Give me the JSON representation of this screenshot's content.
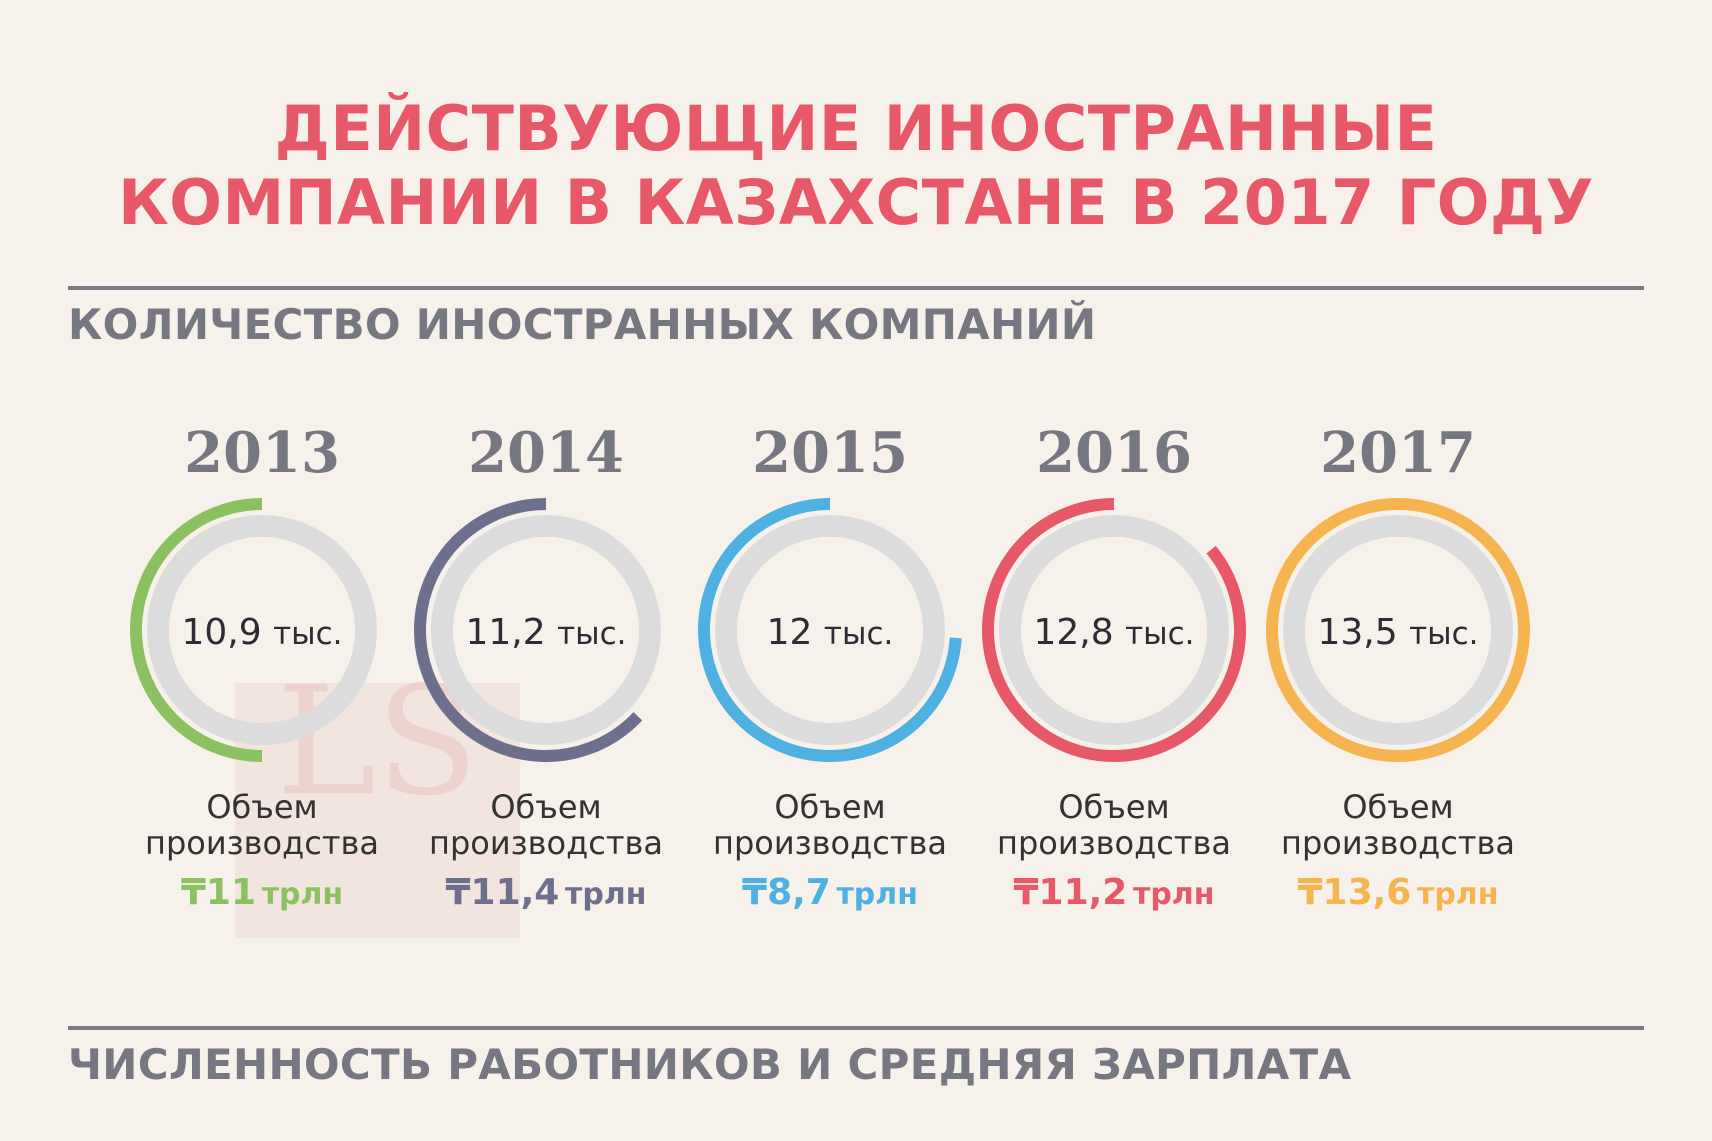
{
  "title": {
    "line1": "ДЕЙСТВУЮЩИЕ ИНОСТРАННЫЕ",
    "line2": "КОМПАНИИ В КАЗАХСТАНЕ В 2017 ГОДУ"
  },
  "section1": {
    "title": "КОЛИЧЕСТВО ИНОСТРАННЫХ КОМПАНИЙ"
  },
  "section2": {
    "title": "ЧИСЛЕННОСТЬ РАБОТНИКОВ И СРЕДНЯЯ ЗАРПЛАТА"
  },
  "watermark": {
    "text": "LS"
  },
  "cards": [
    {
      "year": "2013",
      "count": "10,9",
      "count_unit": "тыс.",
      "label_line1": "Объем",
      "label_line2": "производства",
      "volume": "₸11",
      "volume_unit": "трлн"
    },
    {
      "year": "2014",
      "count": "11,2",
      "count_unit": "тыс.",
      "label_line1": "Объем",
      "label_line2": "производства",
      "volume": "₸11,4",
      "volume_unit": "трлн"
    },
    {
      "year": "2015",
      "count": "12",
      "count_unit": "тыс.",
      "label_line1": "Объем",
      "label_line2": "производства",
      "volume": "₸8,7",
      "volume_unit": "трлн"
    },
    {
      "year": "2016",
      "count": "12,8",
      "count_unit": "тыс.",
      "label_line1": "Объем",
      "label_line2": "производства",
      "volume": "₸11,2",
      "volume_unit": "трлн"
    },
    {
      "year": "2017",
      "count": "13,5",
      "count_unit": "тыс.",
      "label_line1": "Объем",
      "label_line2": "производства",
      "volume": "₸13,6",
      "volume_unit": "трлн"
    }
  ],
  "chart_data": {
    "type": "donut-progress",
    "categories": [
      "2013",
      "2014",
      "2015",
      "2016",
      "2017"
    ],
    "series": [
      {
        "name": "",
        "values": [
          10.9,
          11.2,
          12,
          12.8,
          13.5
        ]
      }
    ],
    "volume_values": [
      11,
      11.4,
      8.7,
      11.2,
      13.6
    ],
    "ring_fill_fraction": [
      0.5,
      0.63,
      0.74,
      0.86,
      1.0
    ],
    "colors": [
      "#8cc161",
      "#6e6f8c",
      "#4fb0e2",
      "#e75868",
      "#f6b450"
    ],
    "track_color": "#dcdcdc"
  }
}
